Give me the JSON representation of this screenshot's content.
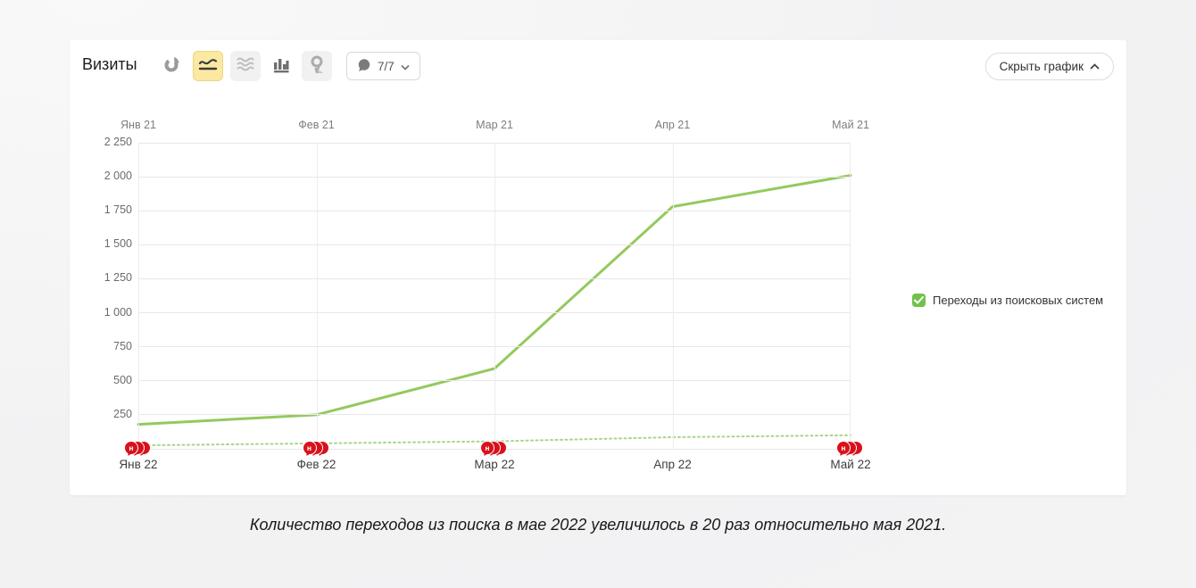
{
  "page": {
    "caption": "Количество переходов из поиска в мае 2022 увеличилось в 20 раз относительно мая 2021."
  },
  "panel": {
    "title": "Визиты",
    "toolbar": {
      "pie_chart_icon": "pie-chart",
      "line_chart_icon": "line-chart",
      "area_chart_icon": "area-chart",
      "bar_chart_icon": "bar-chart",
      "map_icon": "map-pin",
      "comments_button": {
        "icon": "comment-bubble",
        "count_label": "7/7",
        "chevron": "chevron-down"
      },
      "hide_chart_label": "Скрыть график",
      "selected_tool": "line-chart",
      "selected_bg_color": "#fbe9a2"
    },
    "legend": {
      "label": "Переходы из поисковых систем",
      "checked": true,
      "checkbox_color": "#72c14b"
    }
  },
  "chart_data": {
    "type": "line",
    "title": "Визиты",
    "top_axis_labels": [
      "Янв 21",
      "Фев 21",
      "Мар 21",
      "Апр 21",
      "Май 21"
    ],
    "bottom_axis_labels": [
      "Янв 22",
      "Фев 22",
      "Мар 22",
      "Апр 22",
      "Май 22"
    ],
    "y_ticks": [
      0,
      250,
      500,
      750,
      1000,
      1250,
      1500,
      1750,
      2000,
      2250
    ],
    "y_tick_labels": [
      "0",
      "250",
      "500",
      "750",
      "1 000",
      "1 250",
      "1 500",
      "1 750",
      "2 000",
      "2 250"
    ],
    "ylim": [
      0,
      2250
    ],
    "grid": true,
    "legend_position": "right",
    "series": [
      {
        "name": "Переходы из поисковых систем — 2022",
        "style": "solid",
        "color": "#94c95e",
        "width": 3,
        "values": [
          180,
          250,
          590,
          1780,
          2010
        ]
      },
      {
        "name": "Переходы из поисковых систем — 2021",
        "style": "dotted",
        "color": "#a9d685",
        "width": 2,
        "values": [
          25,
          40,
          55,
          85,
          100
        ]
      }
    ],
    "annotations": {
      "color": "#d8121c",
      "letter": "н",
      "markers": [
        {
          "axis_index": 0,
          "bubbles": 3
        },
        {
          "axis_index": 1,
          "bubbles": 3
        },
        {
          "axis_index": 2,
          "bubbles": 3
        },
        {
          "axis_index": 4,
          "bubbles": 3
        }
      ]
    }
  }
}
